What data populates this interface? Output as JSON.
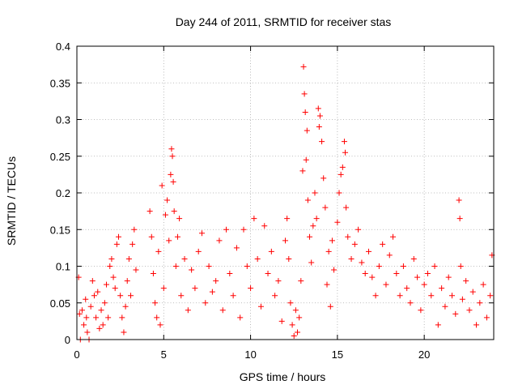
{
  "chart_data": {
    "type": "scatter",
    "title": "Day 244 of 2011, SRMTID for receiver stas",
    "xlabel": "GPS time / hours",
    "ylabel": "SRMTID / TECUs",
    "xlim": [
      0,
      24
    ],
    "ylim": [
      0,
      0.4
    ],
    "xticks": [
      0,
      5,
      10,
      15,
      20
    ],
    "xtick_labels": [
      "0",
      "5",
      "10",
      "15",
      "20"
    ],
    "yticks": [
      0,
      0.05,
      0.1,
      0.15,
      0.2,
      0.25,
      0.3,
      0.35,
      0.4
    ],
    "ytick_labels": [
      "0",
      "0.05",
      "0.1",
      "0.15",
      "0.2",
      "0.25",
      "0.3",
      "0.35",
      "0.4"
    ],
    "grid": true,
    "marker": "+",
    "color": "#ff0000",
    "series": [
      {
        "name": "stas",
        "points": [
          [
            0.1,
            0.085
          ],
          [
            0.15,
            0.035
          ],
          [
            0.2,
            0.0
          ],
          [
            0.3,
            0.04
          ],
          [
            0.4,
            0.02
          ],
          [
            0.5,
            0.055
          ],
          [
            0.55,
            0.03
          ],
          [
            0.6,
            0.01
          ],
          [
            0.7,
            0.0
          ],
          [
            0.8,
            0.045
          ],
          [
            0.9,
            0.08
          ],
          [
            1.0,
            0.06
          ],
          [
            1.1,
            0.03
          ],
          [
            1.2,
            0.065
          ],
          [
            1.3,
            0.015
          ],
          [
            1.4,
            0.04
          ],
          [
            1.5,
            0.02
          ],
          [
            1.6,
            0.05
          ],
          [
            1.7,
            0.075
          ],
          [
            1.8,
            0.03
          ],
          [
            1.9,
            0.1
          ],
          [
            2.0,
            0.11
          ],
          [
            2.1,
            0.085
          ],
          [
            2.2,
            0.07
          ],
          [
            2.3,
            0.13
          ],
          [
            2.4,
            0.14
          ],
          [
            2.5,
            0.06
          ],
          [
            2.6,
            0.03
          ],
          [
            2.7,
            0.01
          ],
          [
            2.8,
            0.045
          ],
          [
            2.9,
            0.08
          ],
          [
            3.0,
            0.11
          ],
          [
            3.1,
            0.06
          ],
          [
            3.2,
            0.13
          ],
          [
            3.3,
            0.15
          ],
          [
            3.4,
            0.095
          ],
          [
            4.2,
            0.175
          ],
          [
            4.3,
            0.14
          ],
          [
            4.4,
            0.09
          ],
          [
            4.5,
            0.05
          ],
          [
            4.6,
            0.03
          ],
          [
            4.7,
            0.12
          ],
          [
            4.8,
            0.02
          ],
          [
            4.9,
            0.21
          ],
          [
            5.0,
            0.07
          ],
          [
            5.1,
            0.17
          ],
          [
            5.2,
            0.19
          ],
          [
            5.3,
            0.135
          ],
          [
            5.4,
            0.225
          ],
          [
            5.45,
            0.26
          ],
          [
            5.5,
            0.25
          ],
          [
            5.55,
            0.215
          ],
          [
            5.6,
            0.175
          ],
          [
            5.7,
            0.1
          ],
          [
            5.8,
            0.14
          ],
          [
            5.9,
            0.165
          ],
          [
            6.0,
            0.06
          ],
          [
            6.2,
            0.11
          ],
          [
            6.4,
            0.04
          ],
          [
            6.6,
            0.095
          ],
          [
            6.8,
            0.07
          ],
          [
            7.0,
            0.12
          ],
          [
            7.2,
            0.145
          ],
          [
            7.4,
            0.05
          ],
          [
            7.6,
            0.1
          ],
          [
            7.8,
            0.065
          ],
          [
            8.0,
            0.08
          ],
          [
            8.2,
            0.135
          ],
          [
            8.4,
            0.04
          ],
          [
            8.6,
            0.15
          ],
          [
            8.8,
            0.09
          ],
          [
            9.0,
            0.06
          ],
          [
            9.2,
            0.125
          ],
          [
            9.4,
            0.03
          ],
          [
            9.6,
            0.15
          ],
          [
            9.8,
            0.1
          ],
          [
            10.0,
            0.07
          ],
          [
            10.2,
            0.165
          ],
          [
            10.4,
            0.11
          ],
          [
            10.6,
            0.045
          ],
          [
            10.8,
            0.155
          ],
          [
            11.0,
            0.09
          ],
          [
            11.2,
            0.12
          ],
          [
            11.4,
            0.06
          ],
          [
            11.6,
            0.08
          ],
          [
            11.8,
            0.025
          ],
          [
            12.0,
            0.135
          ],
          [
            12.1,
            0.165
          ],
          [
            12.2,
            0.11
          ],
          [
            12.3,
            0.05
          ],
          [
            12.4,
            0.02
          ],
          [
            12.5,
            0.005
          ],
          [
            12.6,
            0.04
          ],
          [
            12.7,
            0.01
          ],
          [
            12.8,
            0.03
          ],
          [
            12.9,
            0.08
          ],
          [
            13.0,
            0.23
          ],
          [
            13.05,
            0.372
          ],
          [
            13.1,
            0.335
          ],
          [
            13.15,
            0.31
          ],
          [
            13.2,
            0.245
          ],
          [
            13.25,
            0.285
          ],
          [
            13.3,
            0.19
          ],
          [
            13.4,
            0.14
          ],
          [
            13.5,
            0.105
          ],
          [
            13.6,
            0.155
          ],
          [
            13.7,
            0.2
          ],
          [
            13.8,
            0.165
          ],
          [
            13.9,
            0.315
          ],
          [
            13.95,
            0.29
          ],
          [
            14.0,
            0.305
          ],
          [
            14.1,
            0.27
          ],
          [
            14.2,
            0.22
          ],
          [
            14.3,
            0.18
          ],
          [
            14.4,
            0.075
          ],
          [
            14.5,
            0.12
          ],
          [
            14.6,
            0.045
          ],
          [
            14.7,
            0.135
          ],
          [
            14.8,
            0.095
          ],
          [
            15.0,
            0.16
          ],
          [
            15.1,
            0.2
          ],
          [
            15.2,
            0.225
          ],
          [
            15.3,
            0.235
          ],
          [
            15.4,
            0.27
          ],
          [
            15.45,
            0.255
          ],
          [
            15.5,
            0.18
          ],
          [
            15.6,
            0.14
          ],
          [
            15.8,
            0.11
          ],
          [
            16.0,
            0.13
          ],
          [
            16.2,
            0.15
          ],
          [
            16.4,
            0.105
          ],
          [
            16.6,
            0.09
          ],
          [
            16.8,
            0.12
          ],
          [
            17.0,
            0.085
          ],
          [
            17.2,
            0.06
          ],
          [
            17.4,
            0.1
          ],
          [
            17.6,
            0.13
          ],
          [
            17.8,
            0.075
          ],
          [
            18.0,
            0.115
          ],
          [
            18.2,
            0.14
          ],
          [
            18.4,
            0.09
          ],
          [
            18.6,
            0.06
          ],
          [
            18.8,
            0.1
          ],
          [
            19.0,
            0.07
          ],
          [
            19.2,
            0.05
          ],
          [
            19.4,
            0.11
          ],
          [
            19.6,
            0.085
          ],
          [
            19.8,
            0.04
          ],
          [
            20.0,
            0.075
          ],
          [
            20.2,
            0.09
          ],
          [
            20.4,
            0.06
          ],
          [
            20.6,
            0.1
          ],
          [
            20.8,
            0.02
          ],
          [
            21.0,
            0.07
          ],
          [
            21.2,
            0.045
          ],
          [
            21.4,
            0.085
          ],
          [
            21.6,
            0.06
          ],
          [
            21.8,
            0.035
          ],
          [
            22.0,
            0.19
          ],
          [
            22.05,
            0.165
          ],
          [
            22.1,
            0.1
          ],
          [
            22.2,
            0.055
          ],
          [
            22.4,
            0.08
          ],
          [
            22.6,
            0.04
          ],
          [
            22.8,
            0.065
          ],
          [
            23.0,
            0.02
          ],
          [
            23.2,
            0.05
          ],
          [
            23.4,
            0.075
          ],
          [
            23.6,
            0.03
          ],
          [
            23.8,
            0.06
          ],
          [
            23.9,
            0.115
          ]
        ]
      }
    ]
  }
}
